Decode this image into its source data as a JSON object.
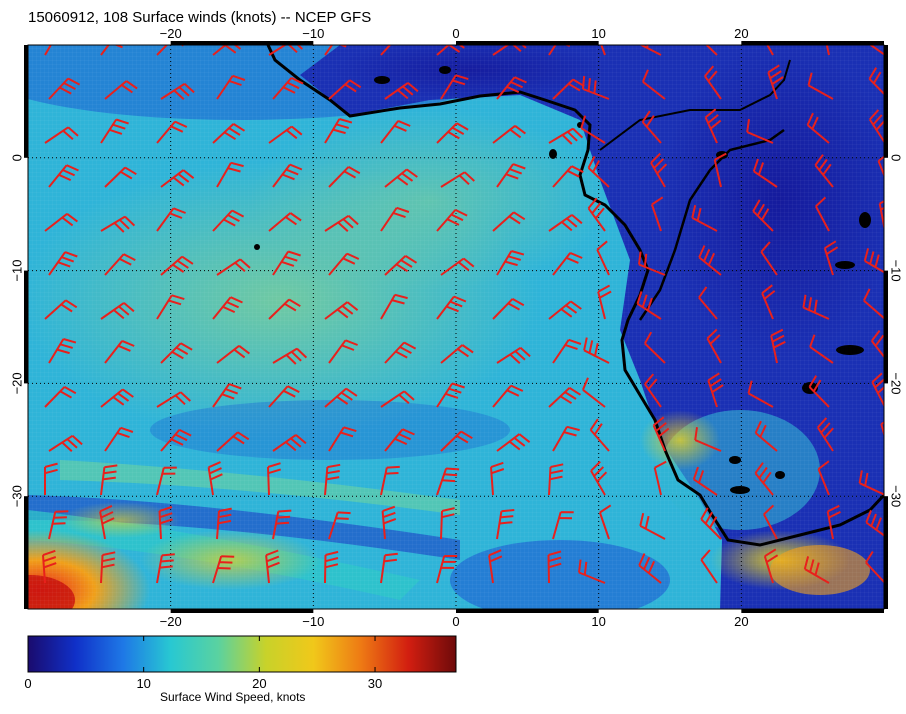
{
  "title": "15060912, 108 Surface winds (knots) -- NCEP GFS",
  "map": {
    "lon_range": [
      -30,
      30
    ],
    "lat_range": [
      -40,
      10
    ],
    "lon_ticks": [
      {
        "v": -20,
        "label": "−20"
      },
      {
        "v": -10,
        "label": "−10"
      },
      {
        "v": 0,
        "label": "0"
      },
      {
        "v": 10,
        "label": "10"
      },
      {
        "v": 20,
        "label": "20"
      }
    ],
    "lat_ticks": [
      {
        "v": 0,
        "label": "0"
      },
      {
        "v": -10,
        "label": "−10"
      },
      {
        "v": -20,
        "label": "−20"
      },
      {
        "v": -30,
        "label": "−30"
      }
    ],
    "graticule": "dotted every 10 degrees",
    "wind_barb_color": "#e8201c",
    "coastline_color": "#000000"
  },
  "colorbar": {
    "label": "Surface Wind Speed, knots",
    "range": [
      0,
      37
    ],
    "ticks": [
      {
        "v": 0,
        "label": "0"
      },
      {
        "v": 10,
        "label": "10"
      },
      {
        "v": 20,
        "label": "20"
      },
      {
        "v": 30,
        "label": "30"
      }
    ],
    "colors": [
      "#1a0b6e",
      "#1030c8",
      "#1e78e6",
      "#28c8d2",
      "#5ad2a0",
      "#c8d22a",
      "#f0c81a",
      "#ee7a14",
      "#d21e10",
      "#6e0a0a"
    ]
  }
}
